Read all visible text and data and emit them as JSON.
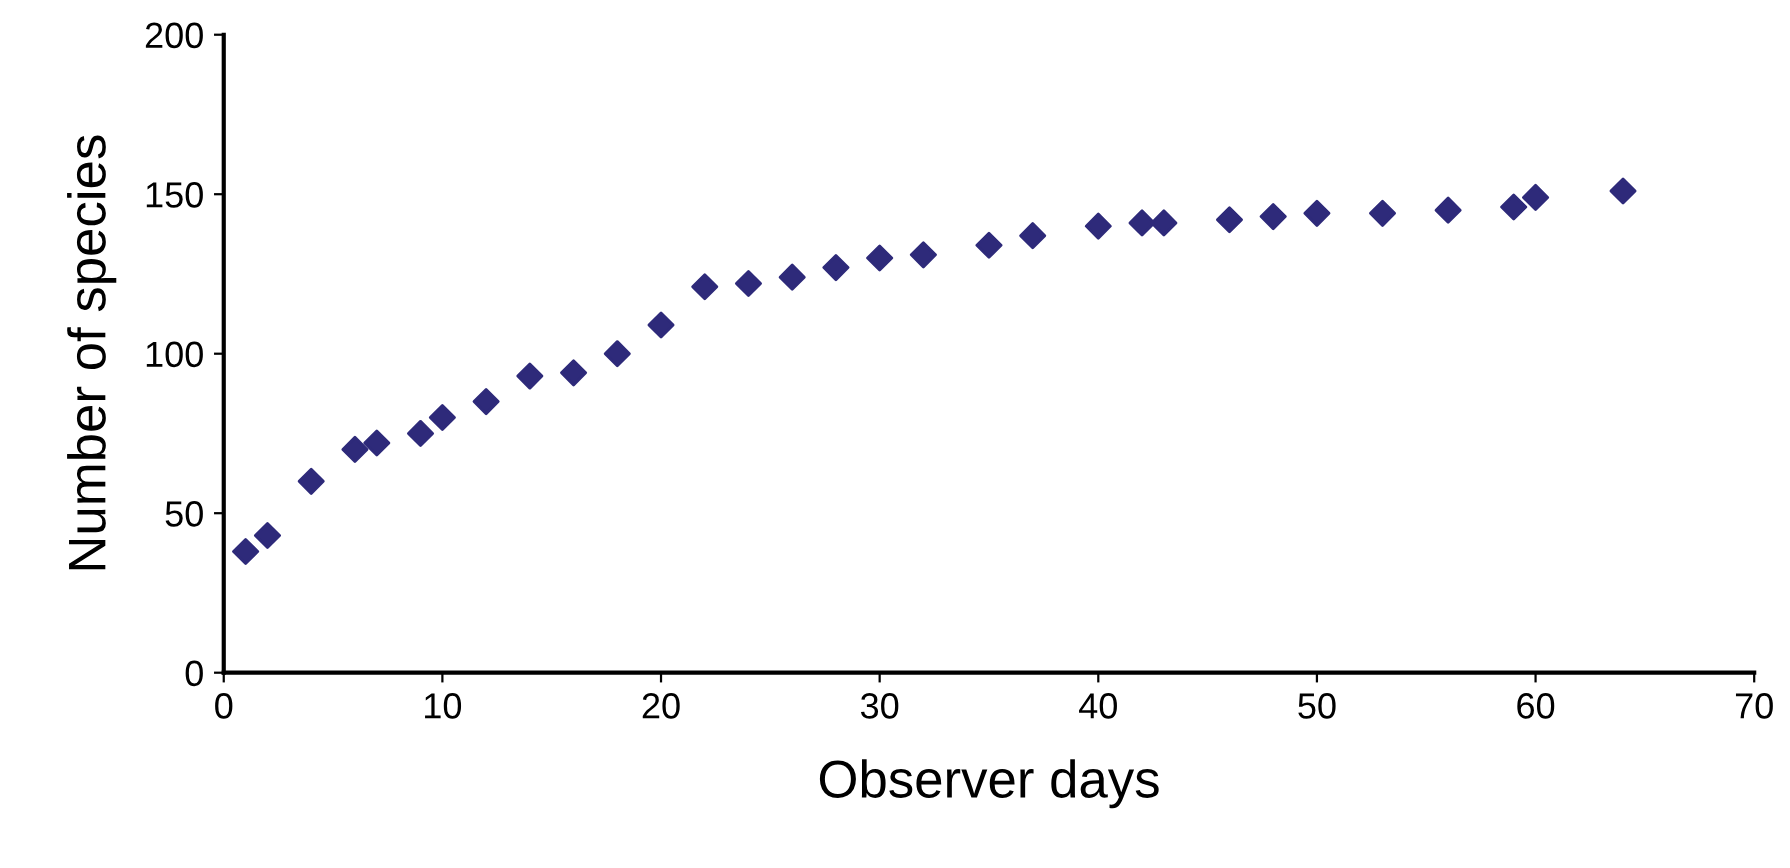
{
  "chart_data": {
    "type": "scatter",
    "xlabel": "Observer days",
    "ylabel": "Number of species",
    "x": [
      1,
      2,
      4,
      6,
      7,
      9,
      10,
      12,
      14,
      16,
      18,
      20,
      22,
      24,
      26,
      28,
      30,
      32,
      35,
      37,
      40,
      42,
      43,
      46,
      48,
      50,
      53,
      56,
      59,
      60,
      64
    ],
    "series": [
      {
        "color": "#2e2a7a",
        "values": [
          38,
          43,
          60,
          70,
          72,
          75,
          80,
          85,
          93,
          94,
          100,
          109,
          121,
          122,
          124,
          127,
          130,
          131,
          134,
          137,
          140,
          141,
          141,
          142,
          143,
          144,
          144,
          145,
          146,
          149,
          151
        ]
      }
    ],
    "xlim": [
      0,
      70
    ],
    "xticks": [
      0,
      10,
      20,
      30,
      40,
      50,
      60,
      70
    ],
    "ylim": [
      0,
      200
    ],
    "yticks": [
      0,
      50,
      100,
      150,
      200
    ],
    "marker": "diamond",
    "grid": false
  }
}
